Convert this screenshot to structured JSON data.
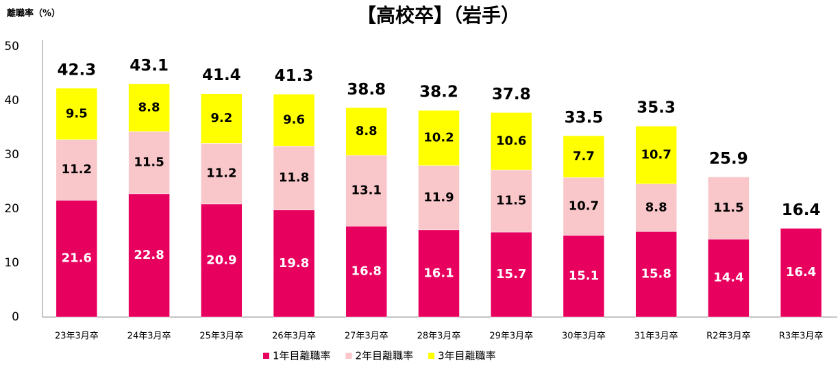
{
  "chart_data": {
    "type": "stacked_bar",
    "title": "【高校卒】（岩手）",
    "ylabel": "離職率（%）",
    "categories": [
      "23年3月卒",
      "24年3月卒",
      "25年3月卒",
      "26年3月卒",
      "27年3月卒",
      "28年3月卒",
      "29年3月卒",
      "30年3月卒",
      "31年3月卒",
      "R2年3月卒",
      "R3年3月卒"
    ],
    "series": [
      {
        "name": "1年目離職率",
        "color": "#e8005f",
        "values": [
          21.6,
          22.8,
          20.9,
          19.8,
          16.8,
          16.1,
          15.7,
          15.1,
          15.8,
          14.4,
          16.4
        ]
      },
      {
        "name": "2年目離職率",
        "color": "#f9c6c9",
        "values": [
          11.2,
          11.5,
          11.2,
          11.8,
          13.1,
          11.9,
          11.5,
          10.7,
          8.8,
          11.5,
          null
        ]
      },
      {
        "name": "3年目離職率",
        "color": "#ffff00",
        "values": [
          9.5,
          8.8,
          9.2,
          9.6,
          8.8,
          10.2,
          10.6,
          7.7,
          10.7,
          null,
          null
        ]
      }
    ],
    "totals": [
      42.3,
      43.1,
      41.4,
      41.3,
      38.8,
      38.2,
      37.8,
      33.5,
      35.3,
      25.9,
      16.4
    ],
    "ylim": [
      0,
      50
    ],
    "yticks": [
      0,
      10,
      20,
      30,
      40,
      50
    ],
    "grid": false,
    "legend": "bottom"
  }
}
